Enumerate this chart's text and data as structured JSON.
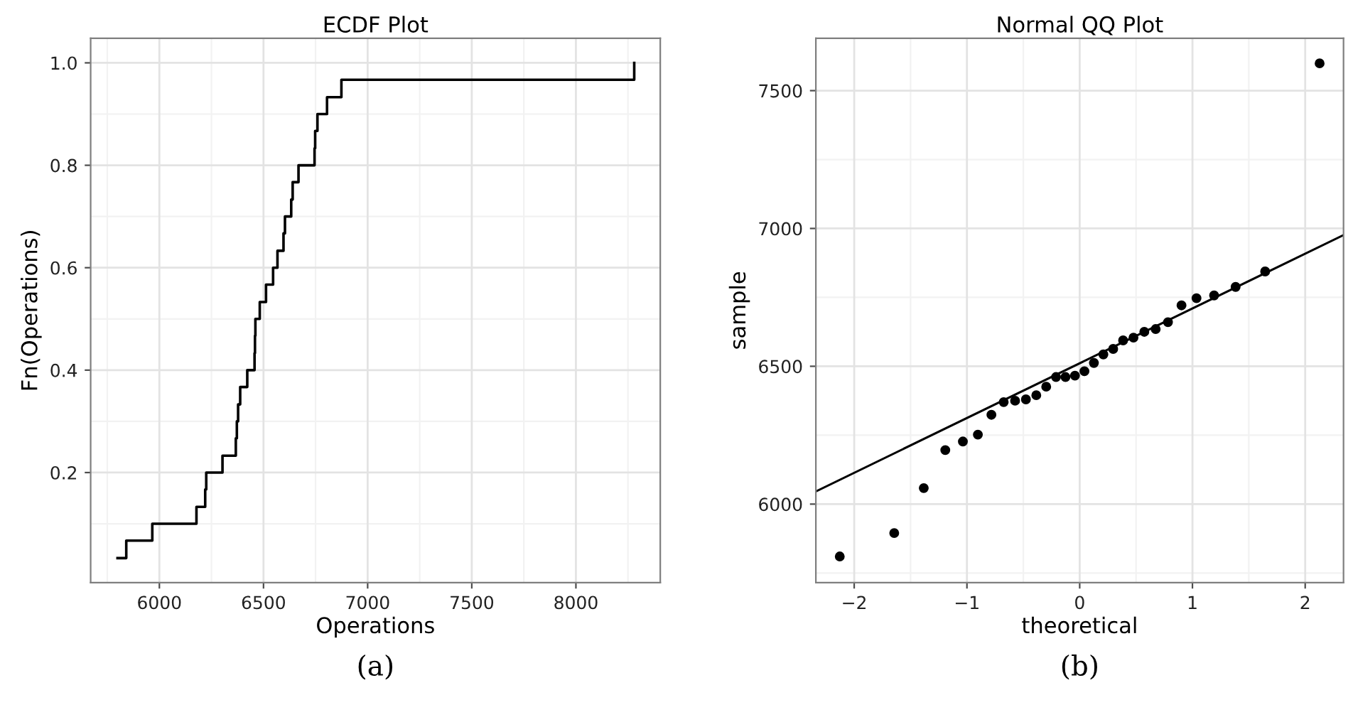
{
  "chart_data": [
    {
      "type": "step",
      "title": "ECDF Plot",
      "xlabel": "Operations",
      "ylabel": "Fn(Operations)",
      "x": [
        5799,
        5841,
        5966,
        6178,
        6220,
        6225,
        6303,
        6367,
        6372,
        6378,
        6388,
        6422,
        6457,
        6459,
        6461,
        6482,
        6512,
        6546,
        6567,
        6596,
        6603,
        6633,
        6640,
        6668,
        6745,
        6748,
        6759,
        6805,
        6874,
        8280
      ],
      "series": [
        {
          "color": "#000000",
          "values": [
            0.033,
            0.067,
            0.1,
            0.133,
            0.167,
            0.2,
            0.233,
            0.267,
            0.3,
            0.333,
            0.367,
            0.4,
            0.433,
            0.467,
            0.5,
            0.533,
            0.567,
            0.6,
            0.633,
            0.667,
            0.7,
            0.733,
            0.767,
            0.8,
            0.833,
            0.867,
            0.9,
            0.933,
            0.967,
            1.0
          ]
        }
      ],
      "xlim": [
        5670,
        8405
      ],
      "ylim": [
        -0.015,
        1.048
      ],
      "xticks": [
        6000,
        6500,
        7000,
        7500,
        8000
      ],
      "yticks": [
        0.2,
        0.4,
        0.6,
        0.8,
        {
          "value": 1,
          "label": "1.0"
        }
      ],
      "grid": true,
      "annotations": [
        "(a)"
      ]
    },
    {
      "type": "scatter",
      "title": "Normal QQ Plot",
      "xlabel": "theoretical",
      "ylabel": "sample",
      "series": [
        {
          "type": "scatter",
          "color": "#000000",
          "marker": "circle",
          "x": [
            -2.128,
            -1.645,
            -1.383,
            -1.192,
            -1.036,
            -0.903,
            -0.783,
            -0.674,
            -0.573,
            -0.477,
            -0.385,
            -0.297,
            -0.21,
            -0.126,
            -0.042,
            0.042,
            0.126,
            0.21,
            0.297,
            0.385,
            0.477,
            0.573,
            0.674,
            0.783,
            0.903,
            1.036,
            1.192,
            1.383,
            1.645,
            2.128
          ],
          "values": [
            5810,
            5895,
            6058,
            6196,
            6227,
            6252,
            6324,
            6370,
            6375,
            6380,
            6395,
            6426,
            6461,
            6461,
            6466,
            6482,
            6512,
            6543,
            6563,
            6594,
            6604,
            6625,
            6635,
            6660,
            6721,
            6747,
            6757,
            6788,
            6844,
            7599
          ]
        },
        {
          "type": "line",
          "color": "#000000",
          "marker": "none",
          "x": [
            -2.34,
            2.34
          ],
          "values": [
            6046,
            6976
          ]
        }
      ],
      "xlim": [
        -2.34,
        2.34
      ],
      "ylim": [
        5715,
        7690
      ],
      "xticks": [
        {
          "value": -2,
          "label": "−2"
        },
        {
          "value": -1,
          "label": "−1"
        },
        0,
        1,
        2
      ],
      "yticks": [
        6000,
        6500,
        7000,
        7500
      ],
      "grid": true,
      "annotations": [
        "(b)"
      ]
    }
  ]
}
